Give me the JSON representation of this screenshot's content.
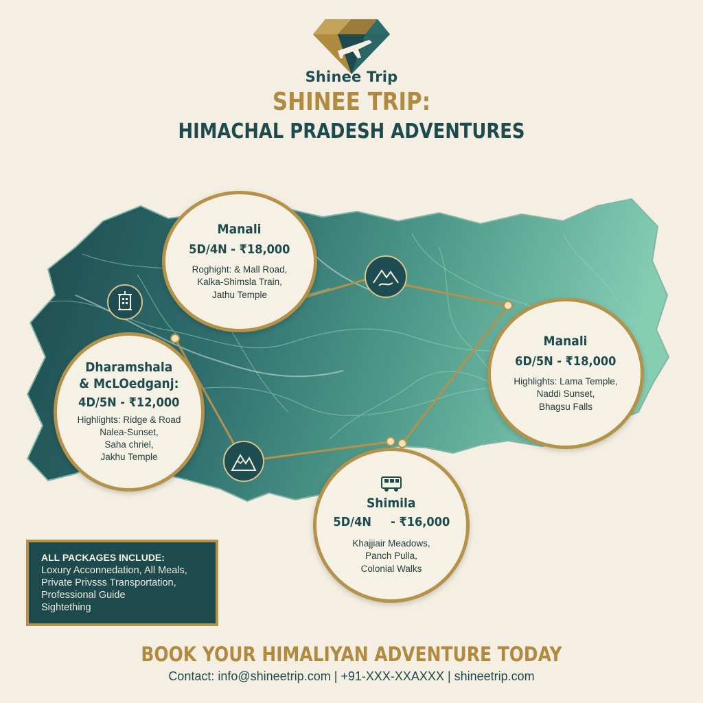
{
  "brand": {
    "name": "Shinee Trip"
  },
  "header": {
    "title_line1": "SHINEE TRIP:",
    "title_line2": "HIMACHAL PRADESH ADVENTURES"
  },
  "destinations": [
    {
      "name": "Manali",
      "package": "5D/4N - ₹18,000",
      "highlights": "Roghight: & Mall Road,\nKalka-Shimsla Train,\nJathu Temple"
    },
    {
      "name": "Dharamshala\n& McLOedganj:",
      "package": "4D/5N - ₹12,000",
      "highlights": "Highlights: Ridge & Road\nNalea-Sunset,\nSaha chriel,\nJakhu Temple"
    },
    {
      "name": "Manali",
      "package": "6D/5N - ₹18,000",
      "highlights": "Highlights: Lama Temple,\nNaddi Sunset,\nBhagsu Falls"
    },
    {
      "name": "Shimila",
      "package": "5D/4N     - ₹16,000",
      "highlights": "Khajjiair Meadows,\nPanch Pulla,\nColonial Walks"
    }
  ],
  "icons": {
    "lantern": "lantern-icon",
    "mountain_river": "mountain-river-icon",
    "mountains": "mountains-icon",
    "bus": "bus-icon",
    "logo": "diamond-plane-logo"
  },
  "includes": {
    "title": "ALL PACKAGES INCLUDE:",
    "items": [
      "Loxury Acconnedation, All Meals,",
      "Private Privsss Transportation,",
      "Professional Guide",
      "Sightething"
    ]
  },
  "footer": {
    "cta": "BOOK YOUR HIMALIYAN ADVENTURE TODAY",
    "contact": "Contact: info@shineetrip.com | +91-XXX-XXAXXX | shineetrip.com"
  },
  "colors": {
    "background": "#f4efe2",
    "gold": "#b5924a",
    "teal_dark": "#1d4a4c",
    "teal_light": "#7ec7b0"
  }
}
